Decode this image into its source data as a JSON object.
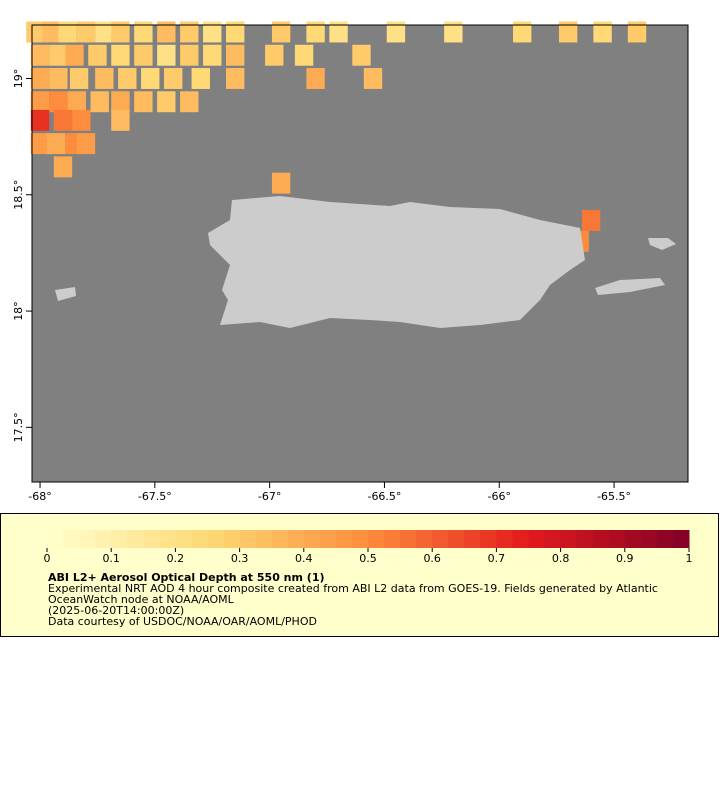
{
  "chart_data": {
    "type": "heatmap",
    "title": "ABI L2+ Aerosol Optical Depth at 550 nm (1)",
    "description": [
      "Experimental NRT AOD 4 hour composite created from ABI L2 data from GOES-19. Fields generated by Atlantic",
      "OceanWatch node at NOAA/AOML",
      "(2025-06-20T14:00:00Z)",
      "Data courtesy of USDOC/NOAA/OAR/AOML/PHOD"
    ],
    "xlim": [
      -68.035,
      -65.178
    ],
    "ylim": [
      17.265,
      19.23
    ],
    "xticks": [
      {
        "value": -68,
        "label": "-68°"
      },
      {
        "value": -67.5,
        "label": "-67.5°"
      },
      {
        "value": -67,
        "label": "-67°"
      },
      {
        "value": -66.5,
        "label": "-66.5°"
      },
      {
        "value": -66,
        "label": "-66°"
      },
      {
        "value": -65.5,
        "label": "-65.5°"
      }
    ],
    "yticks": [
      {
        "value": 17.5,
        "label": "17.5°"
      },
      {
        "value": 18,
        "label": "18°"
      },
      {
        "value": 18.5,
        "label": "18.5°"
      },
      {
        "value": 19,
        "label": "19°"
      }
    ],
    "colorbar": {
      "lim": [
        0,
        1
      ],
      "ticks": [
        0,
        0.1,
        0.2,
        0.3,
        0.4,
        0.5,
        0.6,
        0.7,
        0.8,
        0.9,
        1
      ],
      "steps": 40,
      "colorscale": [
        "#ffffcc",
        "#fed976",
        "#fd8d3c",
        "#e31a1c",
        "#800026"
      ]
    },
    "cells": {
      "lon": [
        -68.02,
        -67.95,
        -67.88,
        -67.8,
        -67.72,
        -67.65,
        -67.55,
        -67.45,
        -67.35,
        -67.25,
        -67.15,
        -66.95,
        -66.8,
        -66.7,
        -66.45,
        -66.2,
        -65.9,
        -65.7,
        -65.55,
        -65.4,
        -68.0,
        -67.92,
        -67.85,
        -67.75,
        -67.65,
        -67.55,
        -67.45,
        -67.35,
        -67.25,
        -67.15,
        -66.98,
        -66.85,
        -66.6,
        -68.0,
        -67.92,
        -67.83,
        -67.72,
        -67.62,
        -67.52,
        -67.42,
        -67.3,
        -67.15,
        -66.8,
        -66.55,
        -68.0,
        -67.92,
        -67.84,
        -67.74,
        -67.65,
        -67.55,
        -67.45,
        -67.35,
        -68.0,
        -67.9,
        -67.82,
        -67.65,
        -68.0,
        -67.93,
        -67.85,
        -67.8,
        -67.9,
        -66.95,
        -65.6,
        -65.65
      ],
      "lat": [
        19.2,
        19.2,
        19.2,
        19.2,
        19.2,
        19.2,
        19.2,
        19.2,
        19.2,
        19.2,
        19.2,
        19.2,
        19.2,
        19.2,
        19.2,
        19.2,
        19.2,
        19.2,
        19.2,
        19.2,
        19.1,
        19.1,
        19.1,
        19.1,
        19.1,
        19.1,
        19.1,
        19.1,
        19.1,
        19.1,
        19.1,
        19.1,
        19.1,
        19.0,
        19.0,
        19.0,
        19.0,
        19.0,
        19.0,
        19.0,
        19.0,
        19.0,
        19.0,
        19.0,
        18.9,
        18.9,
        18.9,
        18.9,
        18.9,
        18.9,
        18.9,
        18.9,
        18.82,
        18.82,
        18.82,
        18.82,
        18.72,
        18.72,
        18.72,
        18.72,
        18.62,
        18.55,
        18.39,
        18.3
      ],
      "values": [
        0.3,
        0.35,
        0.25,
        0.3,
        0.2,
        0.3,
        0.25,
        0.35,
        0.3,
        0.2,
        0.25,
        0.3,
        0.25,
        0.2,
        0.2,
        0.2,
        0.25,
        0.3,
        0.25,
        0.3,
        0.35,
        0.3,
        0.4,
        0.3,
        0.25,
        0.3,
        0.2,
        0.3,
        0.25,
        0.35,
        0.3,
        0.25,
        0.3,
        0.4,
        0.35,
        0.3,
        0.35,
        0.3,
        0.25,
        0.3,
        0.25,
        0.35,
        0.4,
        0.35,
        0.45,
        0.5,
        0.4,
        0.35,
        0.4,
        0.35,
        0.3,
        0.35,
        0.7,
        0.55,
        0.5,
        0.35,
        0.45,
        0.4,
        0.5,
        0.45,
        0.4,
        0.4,
        0.55,
        0.5
      ]
    }
  }
}
